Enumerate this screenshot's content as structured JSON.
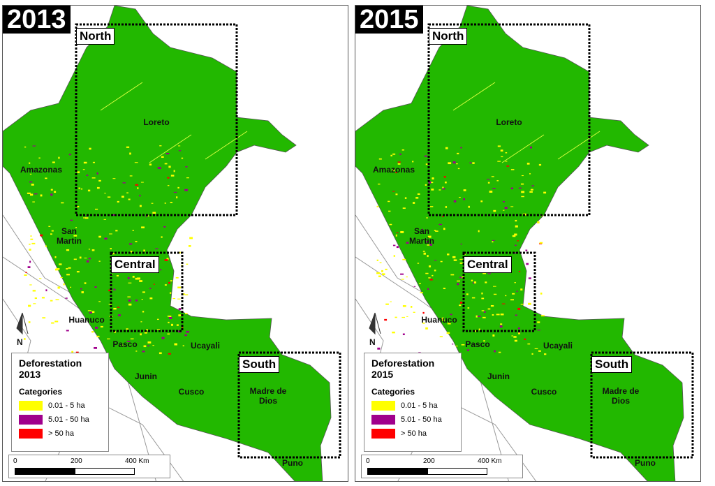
{
  "panels": [
    {
      "year": "2013",
      "regions": [
        "North",
        "Central",
        "South"
      ],
      "places": [
        "Loreto",
        "Amazonas",
        "San Martin",
        "Huanuco",
        "Pasco",
        "Ucayali",
        "Junin",
        "Cusco",
        "Madre de Dios",
        "Puno"
      ],
      "north": "N",
      "legend": {
        "title": "Deforestation 2013",
        "subtitle": "Categories",
        "items": [
          {
            "label": "0.01 - 5 ha",
            "color": "#ffff00"
          },
          {
            "label": "5.01 - 50 ha",
            "color": "#a0008c"
          },
          {
            "label": "> 50 ha",
            "color": "#ff0000"
          }
        ]
      },
      "scale": [
        "0",
        "200",
        "400 Km"
      ]
    },
    {
      "year": "2015",
      "regions": [
        "North",
        "Central",
        "South"
      ],
      "places": [
        "Loreto",
        "Amazonas",
        "San Martin",
        "Huanuco",
        "Pasco",
        "Ucayali",
        "Junin",
        "Cusco",
        "Madre de Dios",
        "Puno"
      ],
      "north": "N",
      "legend": {
        "title": "Deforestation 2015",
        "subtitle": "Categories",
        "items": [
          {
            "label": "0.01 - 5 ha",
            "color": "#ffff00"
          },
          {
            "label": "5.01 - 50 ha",
            "color": "#a0008c"
          },
          {
            "label": "> 50 ha",
            "color": "#ff0000"
          }
        ]
      },
      "scale": [
        "0",
        "200",
        "400 Km"
      ]
    }
  ]
}
